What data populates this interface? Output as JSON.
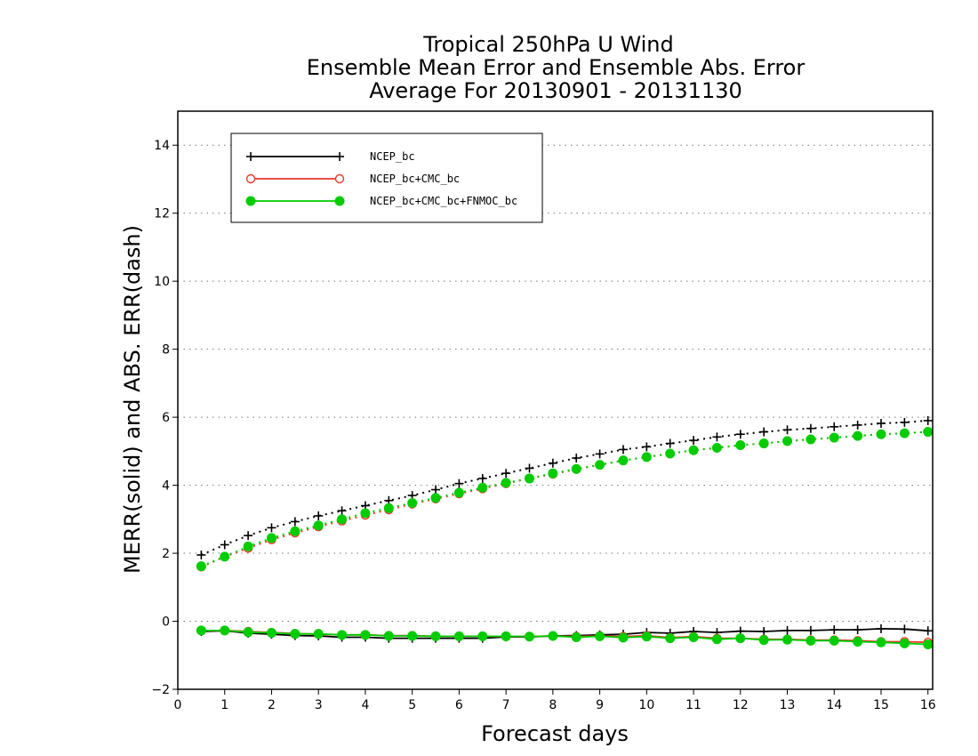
{
  "chart_data": {
    "type": "line",
    "title": [
      "Tropical 250hPa U Wind",
      "Ensemble Mean Error and Ensemble Abs. Error",
      "Average For 20130901 - 20131130"
    ],
    "xlabel": "Forecast days",
    "ylabel": "MERR(solid) and ABS. ERR(dash)",
    "xlim": [
      0,
      16.1
    ],
    "ylim": [
      -2,
      15
    ],
    "xticks": [
      0,
      1,
      2,
      3,
      4,
      5,
      6,
      7,
      8,
      9,
      10,
      11,
      12,
      13,
      14,
      15,
      16
    ],
    "yticks": [
      -2,
      0,
      2,
      4,
      6,
      8,
      10,
      12,
      14
    ],
    "ytick_labels": [
      "−2",
      "0",
      "2",
      "4",
      "6",
      "8",
      "10",
      "12",
      "14"
    ],
    "grid": "horizontal dotted",
    "legend_position": "top-left",
    "x": [
      0.5,
      1,
      1.5,
      2,
      2.5,
      3,
      3.5,
      4,
      4.5,
      5,
      5.5,
      6,
      6.5,
      7,
      7.5,
      8,
      8.5,
      9,
      9.5,
      10,
      10.5,
      11,
      11.5,
      12,
      12.5,
      13,
      13.5,
      14,
      14.5,
      15,
      15.5,
      16
    ],
    "series": [
      {
        "name": "NCEP_bc",
        "color": "#000000",
        "marker": "plus",
        "mean_error": [
          -0.3,
          -0.28,
          -0.35,
          -0.38,
          -0.42,
          -0.43,
          -0.47,
          -0.47,
          -0.5,
          -0.5,
          -0.5,
          -0.5,
          -0.5,
          -0.46,
          -0.46,
          -0.43,
          -0.42,
          -0.4,
          -0.38,
          -0.33,
          -0.35,
          -0.3,
          -0.33,
          -0.29,
          -0.3,
          -0.27,
          -0.27,
          -0.25,
          -0.25,
          -0.22,
          -0.23,
          -0.28
        ],
        "abs_error": [
          1.95,
          2.25,
          2.52,
          2.75,
          2.93,
          3.1,
          3.25,
          3.4,
          3.55,
          3.7,
          3.87,
          4.05,
          4.2,
          4.35,
          4.5,
          4.65,
          4.8,
          4.92,
          5.05,
          5.13,
          5.23,
          5.32,
          5.42,
          5.5,
          5.57,
          5.63,
          5.67,
          5.72,
          5.77,
          5.82,
          5.85,
          5.9
        ]
      },
      {
        "name": "NCEP_bc+CMC_bc",
        "color": "#e8392b",
        "marker": "circle-open",
        "mean_error": [
          -0.27,
          -0.27,
          -0.3,
          -0.33,
          -0.36,
          -0.38,
          -0.4,
          -0.4,
          -0.42,
          -0.42,
          -0.44,
          -0.44,
          -0.44,
          -0.45,
          -0.45,
          -0.43,
          -0.45,
          -0.43,
          -0.45,
          -0.42,
          -0.48,
          -0.45,
          -0.5,
          -0.5,
          -0.53,
          -0.53,
          -0.55,
          -0.55,
          -0.57,
          -0.6,
          -0.6,
          -0.62
        ],
        "abs_error": [
          1.6,
          1.9,
          2.15,
          2.4,
          2.6,
          2.78,
          2.95,
          3.12,
          3.28,
          3.45,
          3.6,
          3.75,
          3.9,
          4.05,
          4.2,
          4.33,
          4.47,
          4.6,
          4.73,
          4.83,
          4.93,
          5.03,
          5.1,
          5.18,
          5.23,
          5.3,
          5.35,
          5.4,
          5.45,
          5.5,
          5.53,
          5.57
        ]
      },
      {
        "name": "NCEP_bc+CMC_bc+FNMOC_bc",
        "color": "#00cc00",
        "marker": "circle-filled",
        "mean_error": [
          -0.27,
          -0.27,
          -0.32,
          -0.34,
          -0.37,
          -0.37,
          -0.4,
          -0.4,
          -0.43,
          -0.43,
          -0.44,
          -0.44,
          -0.44,
          -0.44,
          -0.45,
          -0.43,
          -0.47,
          -0.44,
          -0.48,
          -0.45,
          -0.5,
          -0.47,
          -0.53,
          -0.5,
          -0.55,
          -0.54,
          -0.57,
          -0.57,
          -0.6,
          -0.62,
          -0.65,
          -0.68
        ],
        "abs_error": [
          1.62,
          1.9,
          2.2,
          2.45,
          2.65,
          2.82,
          3.0,
          3.18,
          3.33,
          3.48,
          3.63,
          3.78,
          3.93,
          4.07,
          4.2,
          4.35,
          4.48,
          4.6,
          4.73,
          4.83,
          4.93,
          5.03,
          5.1,
          5.18,
          5.23,
          5.3,
          5.35,
          5.4,
          5.45,
          5.5,
          5.53,
          5.57
        ]
      }
    ]
  }
}
